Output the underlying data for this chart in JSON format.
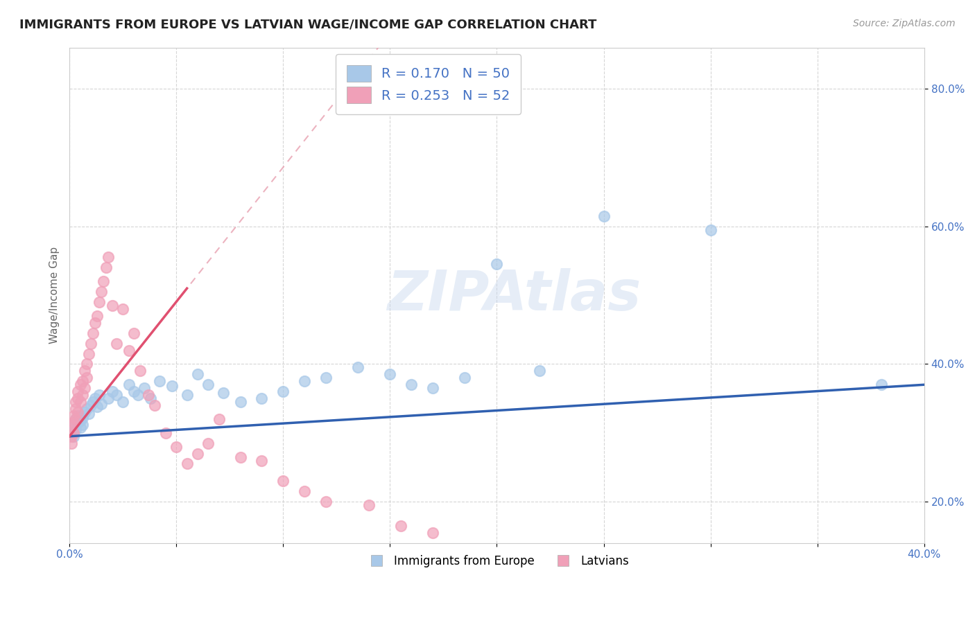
{
  "title": "IMMIGRANTS FROM EUROPE VS LATVIAN WAGE/INCOME GAP CORRELATION CHART",
  "source": "Source: ZipAtlas.com",
  "ylabel": "Wage/Income Gap",
  "xlim": [
    0.0,
    0.4
  ],
  "ylim": [
    0.14,
    0.86
  ],
  "x_ticks": [
    0.0,
    0.05,
    0.1,
    0.15,
    0.2,
    0.25,
    0.3,
    0.35,
    0.4
  ],
  "x_tick_labels": [
    "0.0%",
    "",
    "",
    "",
    "",
    "",
    "",
    "",
    "40.0%"
  ],
  "y_ticks": [
    0.2,
    0.4,
    0.6,
    0.8
  ],
  "y_tick_labels": [
    "20.0%",
    "40.0%",
    "60.0%",
    "80.0%"
  ],
  "blue_R": 0.17,
  "blue_N": 50,
  "pink_R": 0.253,
  "pink_N": 52,
  "blue_color": "#a8c8e8",
  "pink_color": "#f0a0b8",
  "blue_line_color": "#3060b0",
  "pink_line_color": "#e05070",
  "pink_dash_color": "#e8a0b0",
  "legend_label_blue": "Immigrants from Europe",
  "legend_label_pink": "Latvians",
  "watermark": "ZIPAtlas",
  "blue_scatter_x": [
    0.001,
    0.002,
    0.002,
    0.003,
    0.003,
    0.004,
    0.004,
    0.005,
    0.005,
    0.006,
    0.006,
    0.007,
    0.008,
    0.009,
    0.01,
    0.011,
    0.012,
    0.013,
    0.014,
    0.015,
    0.018,
    0.02,
    0.022,
    0.025,
    0.028,
    0.03,
    0.032,
    0.035,
    0.038,
    0.042,
    0.048,
    0.055,
    0.06,
    0.065,
    0.072,
    0.08,
    0.09,
    0.1,
    0.11,
    0.12,
    0.135,
    0.15,
    0.16,
    0.17,
    0.185,
    0.2,
    0.22,
    0.25,
    0.3,
    0.38
  ],
  "blue_scatter_y": [
    0.3,
    0.31,
    0.295,
    0.32,
    0.305,
    0.315,
    0.325,
    0.308,
    0.318,
    0.312,
    0.322,
    0.33,
    0.335,
    0.328,
    0.34,
    0.345,
    0.35,
    0.338,
    0.355,
    0.342,
    0.35,
    0.36,
    0.355,
    0.345,
    0.37,
    0.36,
    0.355,
    0.365,
    0.35,
    0.375,
    0.368,
    0.355,
    0.385,
    0.37,
    0.358,
    0.345,
    0.35,
    0.36,
    0.375,
    0.38,
    0.395,
    0.385,
    0.37,
    0.365,
    0.38,
    0.545,
    0.39,
    0.615,
    0.595,
    0.37
  ],
  "pink_scatter_x": [
    0.001,
    0.001,
    0.001,
    0.002,
    0.002,
    0.002,
    0.003,
    0.003,
    0.003,
    0.004,
    0.004,
    0.004,
    0.005,
    0.005,
    0.006,
    0.006,
    0.007,
    0.007,
    0.008,
    0.008,
    0.009,
    0.01,
    0.011,
    0.012,
    0.013,
    0.014,
    0.015,
    0.016,
    0.017,
    0.018,
    0.02,
    0.022,
    0.025,
    0.028,
    0.03,
    0.033,
    0.037,
    0.04,
    0.045,
    0.05,
    0.055,
    0.06,
    0.065,
    0.07,
    0.08,
    0.09,
    0.1,
    0.11,
    0.12,
    0.14,
    0.155,
    0.17
  ],
  "pink_scatter_y": [
    0.285,
    0.295,
    0.31,
    0.3,
    0.315,
    0.325,
    0.32,
    0.335,
    0.345,
    0.33,
    0.35,
    0.36,
    0.345,
    0.37,
    0.355,
    0.375,
    0.365,
    0.39,
    0.38,
    0.4,
    0.415,
    0.43,
    0.445,
    0.46,
    0.47,
    0.49,
    0.505,
    0.52,
    0.54,
    0.555,
    0.485,
    0.43,
    0.48,
    0.42,
    0.445,
    0.39,
    0.355,
    0.34,
    0.3,
    0.28,
    0.255,
    0.27,
    0.285,
    0.32,
    0.265,
    0.26,
    0.23,
    0.215,
    0.2,
    0.195,
    0.165,
    0.155
  ]
}
